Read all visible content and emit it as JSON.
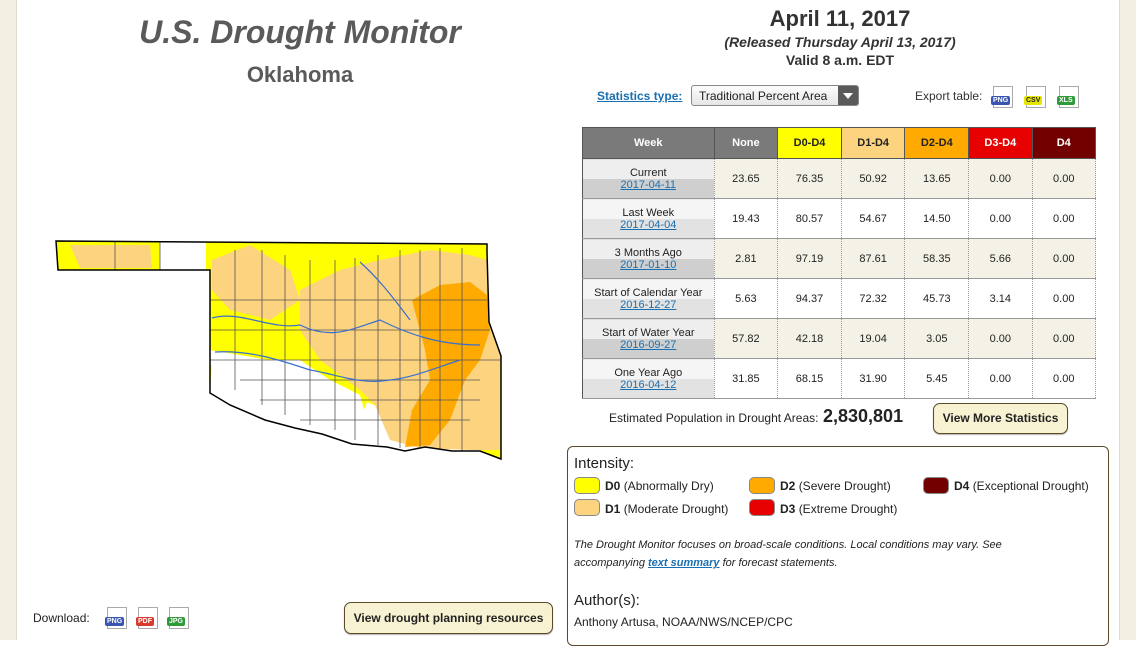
{
  "header": {
    "title": "U.S. Drought Monitor",
    "state": "Oklahoma",
    "date": "April 11, 2017",
    "released": "(Released Thursday April 13, 2017)",
    "valid": "Valid 8 a.m. EDT"
  },
  "controls": {
    "stats_type_label": "Statistics type:",
    "stats_type_value": "Traditional Percent Area",
    "export_label": "Export table:",
    "export_formats": [
      "PNG",
      "CSV",
      "XLS"
    ]
  },
  "table": {
    "headers": [
      "Week",
      "None",
      "D0-D4",
      "D1-D4",
      "D2-D4",
      "D3-D4",
      "D4"
    ],
    "rows": [
      {
        "label": "Current",
        "date": "2017-04-11",
        "values": [
          "23.65",
          "76.35",
          "50.92",
          "13.65",
          "0.00",
          "0.00"
        ]
      },
      {
        "label": "Last Week",
        "date": "2017-04-04",
        "values": [
          "19.43",
          "80.57",
          "54.67",
          "14.50",
          "0.00",
          "0.00"
        ]
      },
      {
        "label": "3 Months Ago",
        "date": "2017-01-10",
        "values": [
          "2.81",
          "97.19",
          "87.61",
          "58.35",
          "5.66",
          "0.00"
        ]
      },
      {
        "label": "Start of Calendar Year",
        "date": "2016-12-27",
        "values": [
          "5.63",
          "94.37",
          "72.32",
          "45.73",
          "3.14",
          "0.00"
        ]
      },
      {
        "label": "Start of Water Year",
        "date": "2016-09-27",
        "values": [
          "57.82",
          "42.18",
          "19.04",
          "3.05",
          "0.00",
          "0.00"
        ]
      },
      {
        "label": "One Year Ago",
        "date": "2016-04-12",
        "values": [
          "31.85",
          "68.15",
          "31.90",
          "5.45",
          "0.00",
          "0.00"
        ]
      }
    ]
  },
  "population": {
    "label": "Estimated Population in Drought Areas:",
    "value": "2,830,801"
  },
  "buttons": {
    "more_stats": "View More Statistics",
    "planning": "View drought planning resources"
  },
  "legend": {
    "title": "Intensity:",
    "items": [
      {
        "code": "D0",
        "desc": "(Abnormally Dry)",
        "color": "#ffff00"
      },
      {
        "code": "D1",
        "desc": "(Moderate Drought)",
        "color": "#fcd37f"
      },
      {
        "code": "D2",
        "desc": "(Severe Drought)",
        "color": "#ffaa00"
      },
      {
        "code": "D3",
        "desc": "(Extreme Drought)",
        "color": "#e60000"
      },
      {
        "code": "D4",
        "desc": "(Exceptional Drought)",
        "color": "#730000"
      }
    ]
  },
  "note": {
    "pre": "The Drought Monitor focuses on broad-scale conditions. Local conditions may vary. See accompanying",
    "link": "text summary",
    "post": "for forecast statements."
  },
  "author": {
    "title": "Author(s):",
    "name": "Anthony Artusa, NOAA/NWS/NCEP/CPC"
  },
  "download": {
    "label": "Download:",
    "formats": [
      "PNG",
      "PDF",
      "JPG"
    ]
  },
  "colors": {
    "none": "#ffffff",
    "d0": "#ffff00",
    "d1": "#fcd37f",
    "d2": "#ffaa00",
    "d3": "#e60000",
    "d4": "#730000",
    "header_gray": "#7a7a7a",
    "panel_border": "#5a4a2a"
  }
}
